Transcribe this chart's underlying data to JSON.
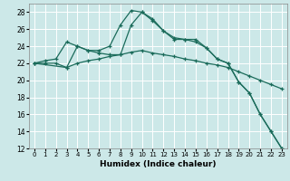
{
  "xlabel": "Humidex (Indice chaleur)",
  "bg_color": "#cce8e8",
  "grid_color": "#ffffff",
  "line_color": "#1a6b5a",
  "xlim": [
    -0.5,
    23.5
  ],
  "ylim": [
    12,
    29
  ],
  "xticks": [
    0,
    1,
    2,
    3,
    4,
    5,
    6,
    7,
    8,
    9,
    10,
    11,
    12,
    13,
    14,
    15,
    16,
    17,
    18,
    19,
    20,
    21,
    22,
    23
  ],
  "yticks": [
    12,
    14,
    16,
    18,
    20,
    22,
    24,
    26,
    28
  ],
  "series1_x": [
    0,
    1,
    2,
    3,
    4,
    5,
    6,
    7,
    8,
    9,
    10,
    11,
    12,
    13,
    14,
    15,
    16,
    17,
    18,
    19,
    20,
    21,
    22,
    23
  ],
  "series1_y": [
    22.0,
    22.3,
    22.5,
    24.5,
    24.0,
    23.5,
    23.5,
    24.0,
    26.5,
    28.2,
    28.0,
    27.2,
    25.8,
    25.0,
    24.8,
    24.8,
    23.8,
    22.5,
    22.0,
    19.8,
    18.5,
    16.0,
    14.0,
    12.0
  ],
  "series2_x": [
    0,
    1,
    2,
    3,
    4,
    5,
    6,
    7,
    8,
    9,
    10,
    11,
    12,
    13,
    14,
    15,
    16,
    17,
    18,
    19,
    20,
    21,
    22,
    23
  ],
  "series2_y": [
    22.0,
    22.0,
    22.0,
    21.5,
    22.0,
    22.3,
    22.5,
    22.8,
    23.0,
    23.3,
    23.5,
    23.2,
    23.0,
    22.8,
    22.5,
    22.3,
    22.0,
    21.8,
    21.5,
    21.0,
    20.5,
    20.0,
    19.5,
    19.0
  ],
  "series3_x": [
    0,
    3,
    4,
    5,
    6,
    7,
    8,
    9,
    10,
    11,
    12,
    13,
    14,
    15,
    16,
    17,
    18,
    19,
    20,
    21,
    22,
    23
  ],
  "series3_y": [
    22.0,
    21.5,
    24.0,
    23.5,
    23.2,
    23.0,
    23.0,
    26.5,
    28.0,
    27.0,
    25.8,
    24.8,
    24.8,
    24.5,
    23.8,
    22.5,
    22.0,
    19.8,
    18.5,
    16.0,
    14.0,
    12.0
  ]
}
